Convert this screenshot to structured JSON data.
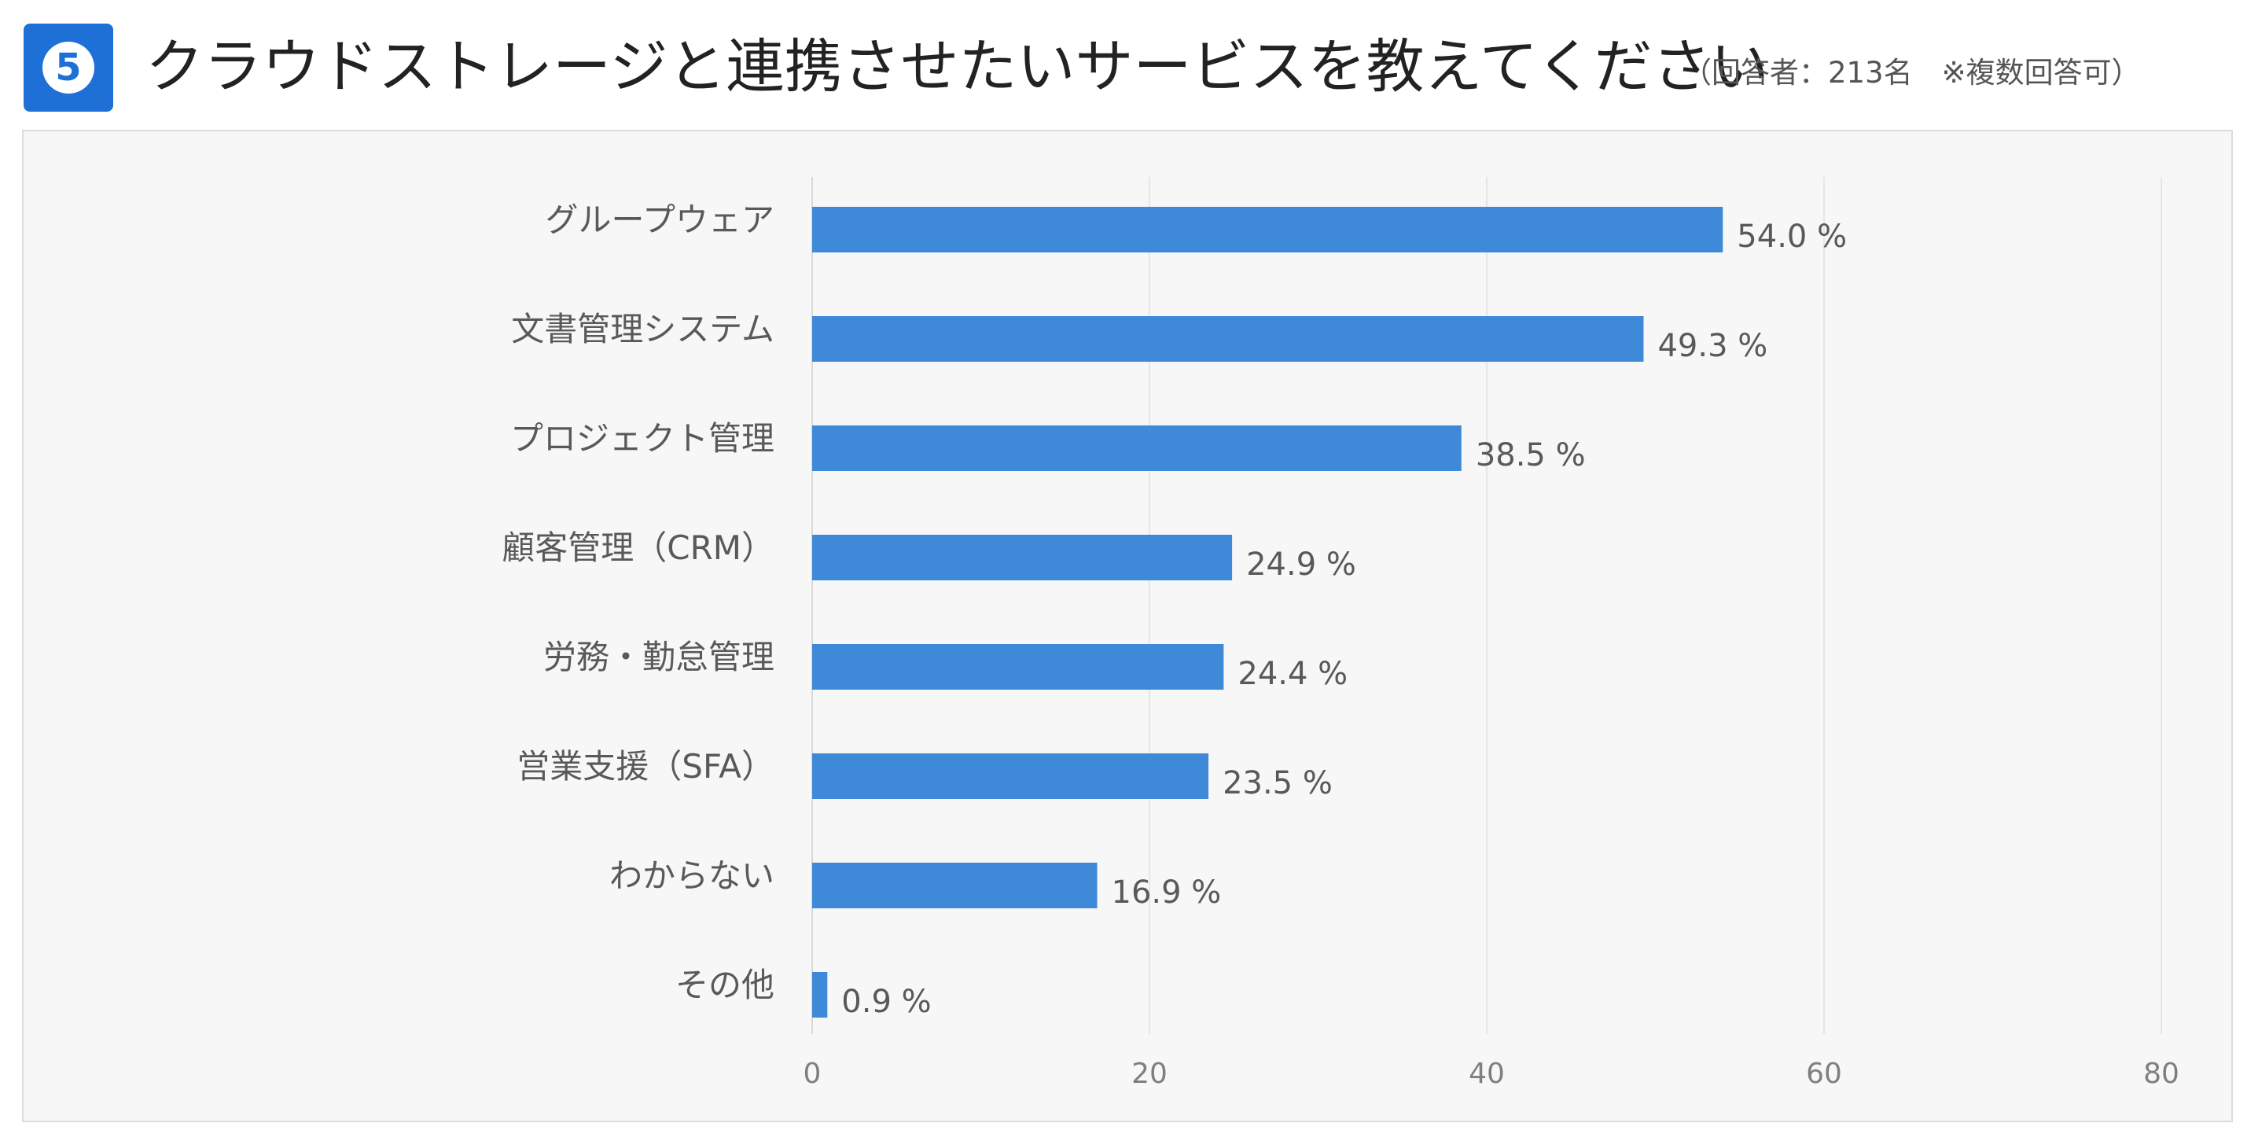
{
  "header": {
    "number": "5",
    "title": "クラウドストレージと連携させたいサービスを教えてください",
    "subtitle": "（回答者：213名　※複数回答可）"
  },
  "chart_data": {
    "type": "bar",
    "orientation": "horizontal",
    "categories": [
      "グループウェア",
      "文書管理システム",
      "プロジェクト管理",
      "顧客管理（CRM）",
      "労務・勤怠管理",
      "営業支援（SFA）",
      "わからない",
      "その他"
    ],
    "values": [
      54.0,
      49.3,
      38.5,
      24.9,
      24.4,
      23.5,
      16.9,
      0.9
    ],
    "value_labels": [
      "54.0 %",
      "49.3 %",
      "38.5 %",
      "24.9 %",
      "24.4 %",
      "23.5 %",
      "16.9 %",
      "0.9 %"
    ],
    "xlim": [
      0,
      80
    ],
    "x_ticks": [
      "0",
      "20",
      "40",
      "60",
      "80"
    ],
    "bar_color": "#3f8ad8",
    "grid": true
  }
}
